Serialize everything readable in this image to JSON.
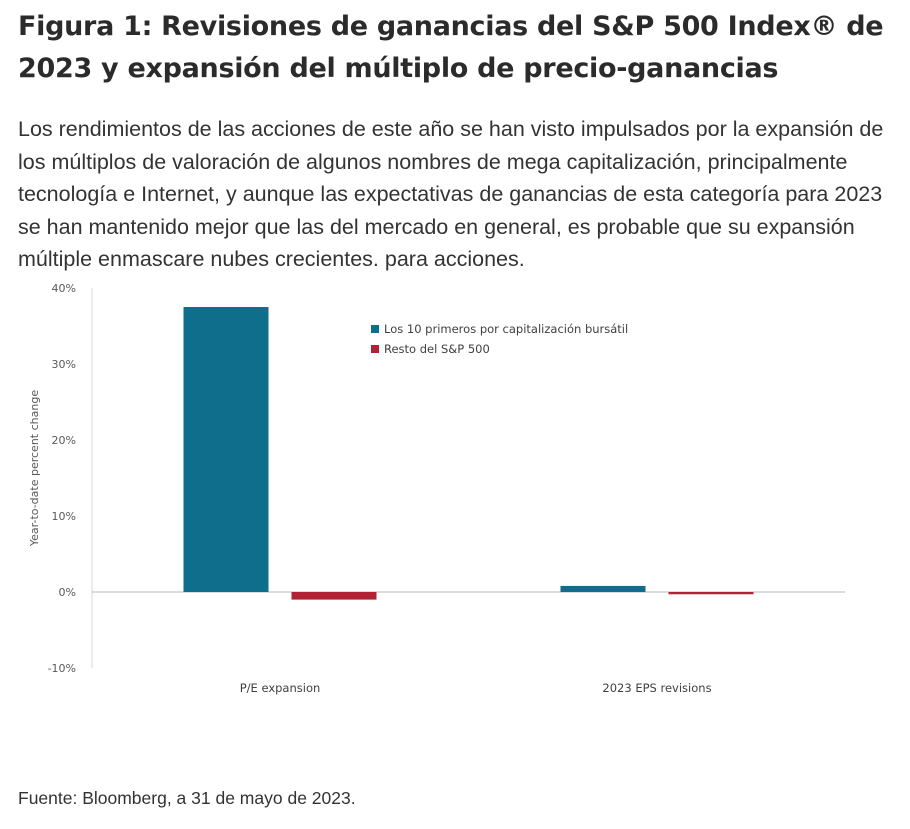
{
  "title": "Figura 1: Revisiones de ganancias del S&P 500 Index® de 2023 y expansión del múltiplo de precio-ganancias",
  "description": "Los rendimientos de las acciones de este año se han visto impulsados por la expansión de los múltiplos de valoración de algunos nombres de mega capitalización, principalmente tecnología e Internet, y aunque las expectativas de ganancias de esta categoría para 2023 se han mantenido mejor que las del mercado en general, es probable que su expansión múltiple enmascare nubes crecientes. para acciones.",
  "source": "Fuente: Bloomberg, a 31 de mayo de 2023.",
  "chart_data": {
    "type": "bar",
    "title": "",
    "xlabel": "",
    "ylabel": "Year-to-date percent change",
    "categories": [
      "P/E expansion",
      "2023 EPS revisions"
    ],
    "series": [
      {
        "name": "Los 10 primeros por capitalización bursátil",
        "color": "#0f6e8c",
        "values": [
          37.5,
          0.8
        ]
      },
      {
        "name": "Resto del S&P 500",
        "color": "#b22234",
        "values": [
          -1.0,
          -0.3
        ]
      }
    ],
    "ylim": [
      -10,
      40
    ],
    "yticks": [
      40,
      30,
      20,
      10,
      0,
      -10
    ],
    "ytick_labels": [
      "40%",
      "30%",
      "20%",
      "10%",
      "0%",
      "-10%"
    ],
    "legend_position": "top-center",
    "grid": false
  }
}
